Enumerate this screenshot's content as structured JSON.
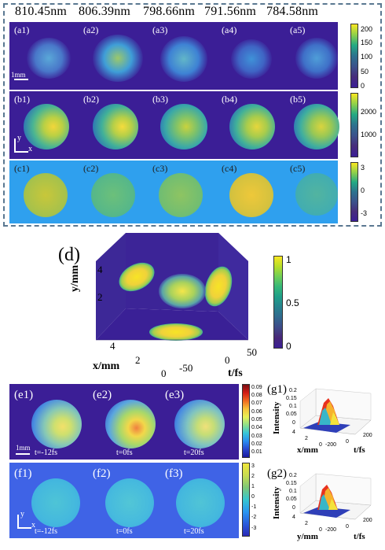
{
  "wavelengths": [
    "810.45nm",
    "806.39nm",
    "798.66nm",
    "791.56nm",
    "784.58nm"
  ],
  "row_a": {
    "labels": [
      "(a1)",
      "(a2)",
      "(a3)",
      "(a4)",
      "(a5)"
    ],
    "colorbar_ticks": [
      "200",
      "150",
      "100",
      "50",
      "0"
    ]
  },
  "row_b": {
    "labels": [
      "(b1)",
      "(b2)",
      "(b3)",
      "(b4)",
      "(b5)"
    ],
    "colorbar_ticks": [
      "2000",
      "1000"
    ]
  },
  "row_c": {
    "labels": [
      "(c1)",
      "(c2)",
      "(c3)",
      "(c4)",
      "(c5)"
    ],
    "colorbar_ticks": [
      "3",
      "0",
      "-3"
    ]
  },
  "scale_bar_label": "1mm",
  "axes_xy": {
    "x": "x",
    "y": "y"
  },
  "panel_d": {
    "label": "(d)",
    "y_axis_label": "y/mm",
    "x_axis_label": "x/mm",
    "t_axis_label": "t/fs",
    "y_ticks": [
      "4",
      "2"
    ],
    "x_ticks": [
      "4",
      "2",
      "0"
    ],
    "t_ticks": [
      "-50",
      "0",
      "50"
    ],
    "colorbar_ticks": [
      "1",
      "0.5",
      "0"
    ]
  },
  "row_e": {
    "labels": [
      "(e1)",
      "(e2)",
      "(e3)"
    ],
    "times": [
      "t=-12fs",
      "t=0fs",
      "t=20fs"
    ],
    "colorbar_ticks": [
      "0.09",
      "0.08",
      "0.07",
      "0.06",
      "0.05",
      "0.04",
      "0.03",
      "0.02",
      "0.01"
    ]
  },
  "row_f": {
    "labels": [
      "(f1)",
      "(f2)",
      "(f3)"
    ],
    "times": [
      "t=-12fs",
      "t=0fs",
      "t=20fs"
    ],
    "colorbar_ticks": [
      "3",
      "2",
      "1",
      "0",
      "-1",
      "-2",
      "-3"
    ]
  },
  "panel_g1": {
    "label": "(g1)",
    "z_label": "Intensity",
    "x_label": "x/mm",
    "t_label": "t/fs",
    "z_ticks": [
      "0.2",
      "0.15",
      "0.1",
      "0.05",
      "0"
    ],
    "x_ticks": [
      "4",
      "2",
      "0"
    ],
    "t_ticks": [
      "-200",
      "0",
      "200"
    ]
  },
  "panel_g2": {
    "label": "(g2)",
    "z_label": "Intensity",
    "x_label": "y/mm",
    "t_label": "t/fs",
    "z_ticks": [
      "0.2",
      "0.15",
      "0.1",
      "0.05",
      "0"
    ],
    "x_ticks": [
      "4",
      "2",
      "0"
    ],
    "t_ticks": [
      "-200",
      "0",
      "200"
    ]
  },
  "colors": {
    "dark_bg": "#3b1e96",
    "cyan_bg": "#2fa0ee",
    "frame": "#5a7891"
  }
}
